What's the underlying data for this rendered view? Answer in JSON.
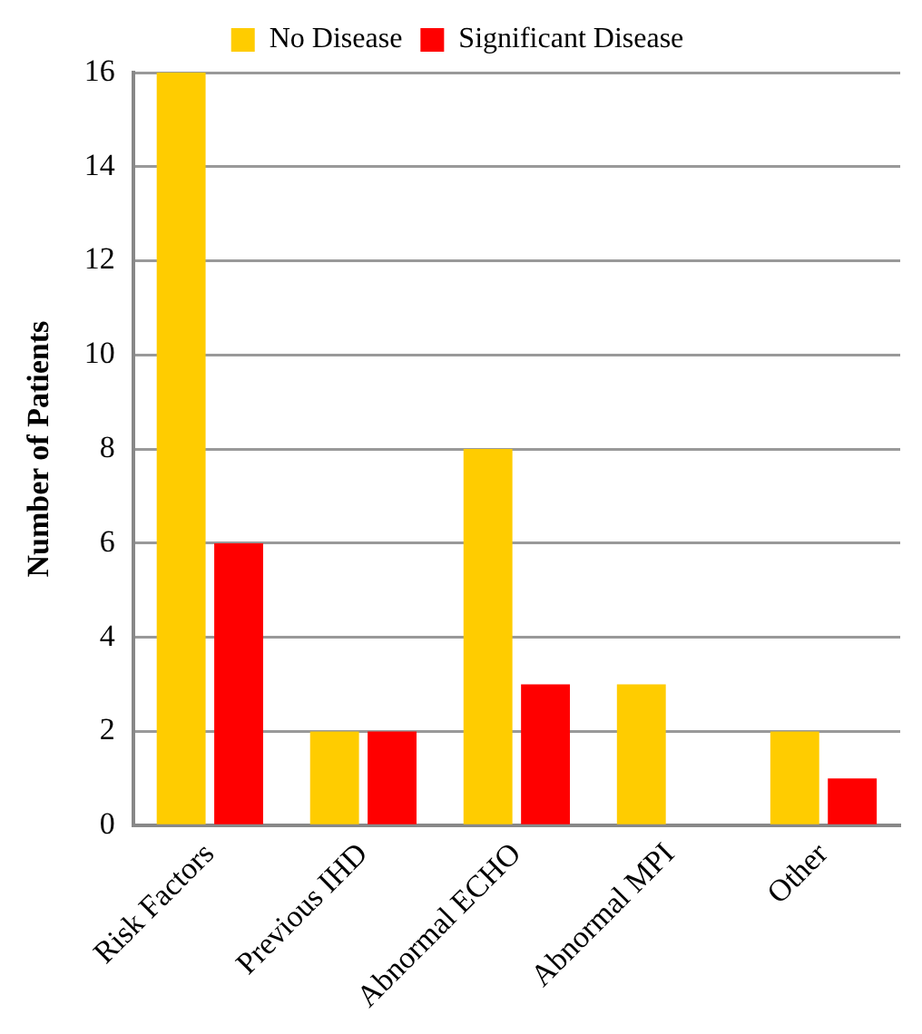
{
  "chart_data": {
    "type": "bar",
    "ylabel": "Number of Patients",
    "categories": [
      "Risk Factors",
      "Previous IHD",
      "Abnormal ECHO",
      "Abnormal MPI",
      "Other"
    ],
    "series": [
      {
        "name": "No Disease",
        "color": "#ffcc00",
        "values": [
          16,
          2,
          8,
          3,
          2
        ]
      },
      {
        "name": "Significant Disease",
        "color": "#ff0000",
        "values": [
          6,
          2,
          3,
          0,
          1
        ]
      }
    ],
    "ylim": [
      0,
      16
    ],
    "yticks": [
      0,
      2,
      4,
      6,
      8,
      10,
      12,
      14,
      16
    ],
    "grid": "y",
    "legend": "top"
  }
}
